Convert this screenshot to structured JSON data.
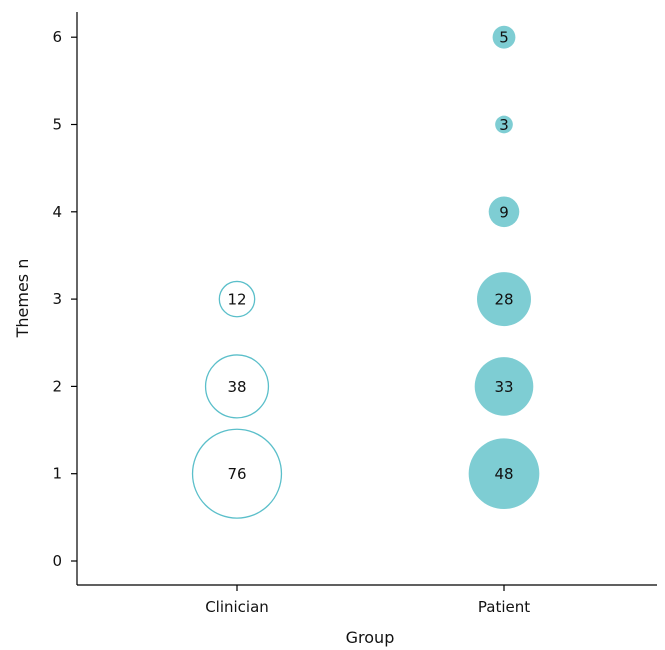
{
  "chart_data": {
    "type": "scatter",
    "xlabel": "Group",
    "ylabel": "Themes n",
    "categories": [
      "Clinician",
      "Patient"
    ],
    "ylim": [
      0,
      6
    ],
    "yticks": [
      0,
      1,
      2,
      3,
      4,
      5,
      6
    ],
    "grid": false,
    "legend": "none",
    "series": [
      {
        "category": "Clinician",
        "style": "outline",
        "color": "#5bbfca",
        "points": [
          {
            "y": 1,
            "value": 76
          },
          {
            "y": 2,
            "value": 38
          },
          {
            "y": 3,
            "value": 12
          }
        ]
      },
      {
        "category": "Patient",
        "style": "filled",
        "color": "#7ecdd3",
        "points": [
          {
            "y": 1,
            "value": 48
          },
          {
            "y": 2,
            "value": 33
          },
          {
            "y": 3,
            "value": 28
          },
          {
            "y": 4,
            "value": 9
          },
          {
            "y": 5,
            "value": 3
          },
          {
            "y": 6,
            "value": 5
          }
        ]
      }
    ]
  }
}
